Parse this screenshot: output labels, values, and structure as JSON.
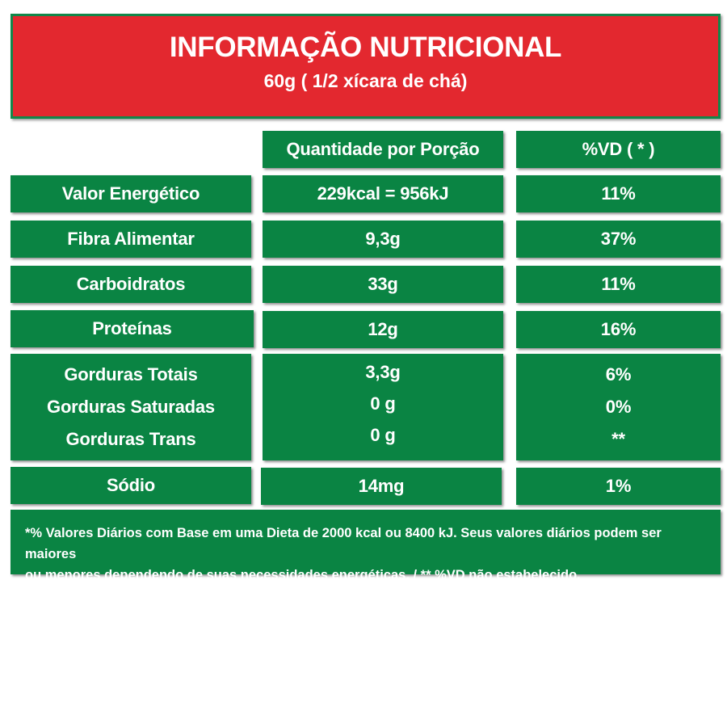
{
  "header": {
    "title": "INFORMAÇÃO NUTRICIONAL",
    "subtitle": "60g ( 1/2 xícara de chá)"
  },
  "columns": {
    "quantity": "Quantidade por Porção",
    "dv": "%VD ( * )"
  },
  "rows": [
    {
      "label": "Valor Energético",
      "quantity": "229kcal = 956kJ",
      "dv": "11%"
    },
    {
      "label": "Fibra Alimentar",
      "quantity": "9,3g",
      "dv": "37%"
    },
    {
      "label": "Carboidratos",
      "quantity": "33g",
      "dv": "11%"
    },
    {
      "label": "Proteínas",
      "quantity": "12g",
      "dv": "16%"
    },
    {
      "label": "Sódio",
      "quantity": "14mg",
      "dv": "1%"
    }
  ],
  "fats": [
    {
      "label": "Gorduras Totais",
      "quantity": "3,3g",
      "dv": "6%"
    },
    {
      "label": "Gorduras Saturadas",
      "quantity": "0 g",
      "dv": "0%"
    },
    {
      "label": "Gorduras Trans",
      "quantity": "0 g",
      "dv": "**"
    }
  ],
  "footnote": {
    "line1": "*% Valores Diários com Base em uma Dieta de 2000 kcal ou 8400 kJ. Seus valores diários podem ser maiores",
    "line2": "ou menores dependendo de suas necessidades energéticas. / ** %VD não estabelecido."
  },
  "colors": {
    "header_red": "#e3282f",
    "cell_green": "#0a8443",
    "text": "#ffffff"
  }
}
